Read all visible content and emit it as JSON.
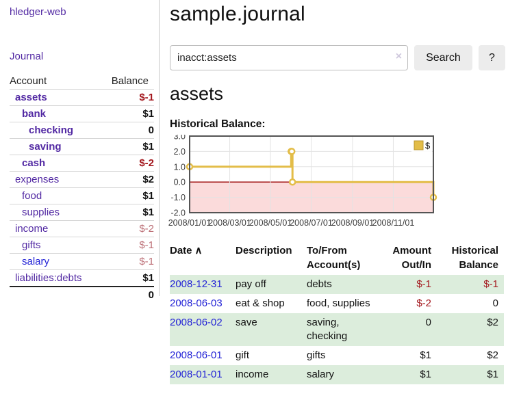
{
  "app": {
    "brand": "hledger-web"
  },
  "sidebar": {
    "journal_link": "Journal",
    "table": {
      "account_header": "Account",
      "balance_header": "Balance",
      "rows": [
        {
          "label": "assets",
          "balance": "$-1",
          "level": 1,
          "emph": true,
          "balance_class": "neg-strong",
          "link": "purple"
        },
        {
          "label": "bank",
          "balance": "$1",
          "level": 2,
          "emph": true,
          "balance_class": "pos",
          "link": "purple"
        },
        {
          "label": "checking",
          "balance": "0",
          "level": 3,
          "emph": true,
          "balance_class": "pos",
          "link": "purple"
        },
        {
          "label": "saving",
          "balance": "$1",
          "level": 3,
          "emph": true,
          "balance_class": "pos",
          "link": "purple"
        },
        {
          "label": "cash",
          "balance": "$-2",
          "level": 2,
          "emph": true,
          "balance_class": "neg-strong",
          "link": "purple"
        },
        {
          "label": "expenses",
          "balance": "$2",
          "level": 1,
          "emph": false,
          "balance_class": "pos",
          "link": "purple"
        },
        {
          "label": "food",
          "balance": "$1",
          "level": 2,
          "emph": false,
          "balance_class": "pos",
          "link": "purple"
        },
        {
          "label": "supplies",
          "balance": "$1",
          "level": 2,
          "emph": false,
          "balance_class": "pos",
          "link": "purple"
        },
        {
          "label": "income",
          "balance": "$-2",
          "level": 1,
          "emph": false,
          "balance_class": "neg-dim",
          "link": "purple"
        },
        {
          "label": "gifts",
          "balance": "$-1",
          "level": 2,
          "emph": false,
          "balance_class": "neg-dim",
          "link": "purple"
        },
        {
          "label": "salary",
          "balance": "$-1",
          "level": 2,
          "emph": false,
          "balance_class": "neg-dim",
          "link": "blue"
        },
        {
          "label": "liabilities:debts",
          "balance": "$1",
          "level": 1,
          "emph": false,
          "balance_class": "pos",
          "link": "purple"
        }
      ],
      "total": "0"
    }
  },
  "header": {
    "title": "sample.journal"
  },
  "search": {
    "value": "inacct:assets",
    "clear_icon": "×",
    "search_button": "Search",
    "help_button": "?"
  },
  "account_page": {
    "title": "assets",
    "chart_label": "Historical Balance:"
  },
  "chart_data": {
    "type": "line",
    "step": true,
    "title": "Historical Balance:",
    "series": [
      {
        "name": "$",
        "color": "#e3bd48",
        "points": [
          [
            "2008-01-01",
            1
          ],
          [
            "2008-06-01",
            2
          ],
          [
            "2008-06-02",
            2
          ],
          [
            "2008-06-03",
            0
          ],
          [
            "2008-12-31",
            -1
          ]
        ]
      }
    ],
    "xlim": [
      "2008-01-01",
      "2008-12-31"
    ],
    "ylim": [
      -2,
      3
    ],
    "yticks": [
      3,
      2,
      1,
      0,
      -1,
      -2
    ],
    "xticks": [
      "2008/01/01",
      "2008/03/01",
      "2008/05/01",
      "2008/07/01",
      "2008/09/01",
      "2008/11/01"
    ],
    "legend": [
      "$"
    ],
    "legend_position": "top-right",
    "grid": true,
    "colors": {
      "grid": "#e3e3e3",
      "border": "#545454",
      "zero_line": "#990000",
      "negative_region": "#fbdbdb",
      "tick_text": "#3c3c3c",
      "legend_swatch_border": "#b8962e"
    }
  },
  "register": {
    "headers": {
      "date": "Date",
      "sort_icon": "∧",
      "description": "Description",
      "accounts": "To/From Account(s)",
      "amount": "Amount Out/In",
      "balance": "Historical Balance"
    },
    "rows": [
      {
        "date": "2008-12-31",
        "description": "pay off",
        "accounts": "debts",
        "amount": "$-1",
        "amount_neg": true,
        "balance": "$-1",
        "balance_neg": true,
        "shade": true
      },
      {
        "date": "2008-06-03",
        "description": "eat & shop",
        "accounts": "food, supplies",
        "amount": "$-2",
        "amount_neg": true,
        "balance": "0",
        "balance_neg": false,
        "shade": false
      },
      {
        "date": "2008-06-02",
        "description": "save",
        "accounts": "saving, checking",
        "amount": "0",
        "amount_neg": false,
        "balance": "$2",
        "balance_neg": false,
        "shade": true
      },
      {
        "date": "2008-06-01",
        "description": "gift",
        "accounts": "gifts",
        "amount": "$1",
        "amount_neg": false,
        "balance": "$2",
        "balance_neg": false,
        "shade": false
      },
      {
        "date": "2008-01-01",
        "description": "income",
        "accounts": "salary",
        "amount": "$1",
        "amount_neg": false,
        "balance": "$1",
        "balance_neg": false,
        "shade": true
      }
    ]
  }
}
